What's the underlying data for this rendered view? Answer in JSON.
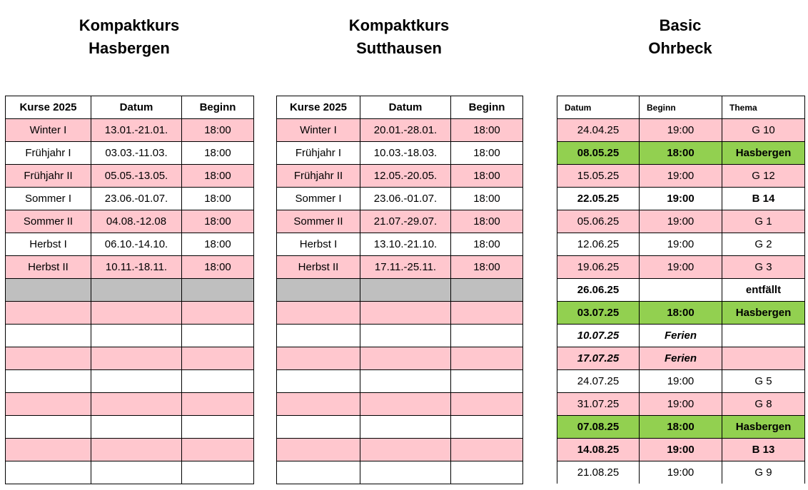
{
  "headings": [
    {
      "line1": "Kompaktkurs",
      "line2": "Hasbergen"
    },
    {
      "line1": "Kompaktkurs",
      "line2": "Sutthausen"
    },
    {
      "line1": "Basic",
      "line2": "Ohrbeck"
    }
  ],
  "table1": {
    "headers": [
      "Kurse 2025",
      "Datum",
      "Beginn"
    ],
    "rows": [
      {
        "kurs": "Winter I",
        "datum": "13.01.-21.01.",
        "beginn": "18:00"
      },
      {
        "kurs": "Frühjahr I",
        "datum": "03.03.-11.03.",
        "beginn": "18:00"
      },
      {
        "kurs": "Frühjahr II",
        "datum": "05.05.-13.05.",
        "beginn": "18:00"
      },
      {
        "kurs": "Sommer I",
        "datum": "23.06.-01.07.",
        "beginn": "18:00"
      },
      {
        "kurs": "Sommer II",
        "datum": "04.08.-12.08",
        "beginn": "18:00"
      },
      {
        "kurs": "Herbst I",
        "datum": "06.10.-14.10.",
        "beginn": "18:00"
      },
      {
        "kurs": "Herbst II",
        "datum": "10.11.-18.11.",
        "beginn": "18:00"
      }
    ]
  },
  "table2": {
    "headers": [
      "Kurse 2025",
      "Datum",
      "Beginn"
    ],
    "rows": [
      {
        "kurs": "Winter I",
        "datum": "20.01.-28.01.",
        "beginn": "18:00"
      },
      {
        "kurs": "Frühjahr I",
        "datum": "10.03.-18.03.",
        "beginn": "18:00"
      },
      {
        "kurs": "Frühjahr II",
        "datum": "12.05.-20.05.",
        "beginn": "18:00"
      },
      {
        "kurs": "Sommer I",
        "datum": "23.06.-01.07.",
        "beginn": "18:00"
      },
      {
        "kurs": "Sommer II",
        "datum": "21.07.-29.07.",
        "beginn": "18:00"
      },
      {
        "kurs": "Herbst I",
        "datum": "13.10.-21.10.",
        "beginn": "18:00"
      },
      {
        "kurs": "Herbst II",
        "datum": "17.11.-25.11.",
        "beginn": "18:00"
      }
    ]
  },
  "table3": {
    "headers": [
      "Datum",
      "Beginn",
      "Thema"
    ],
    "rows": [
      {
        "datum": "24.04.25",
        "beginn": "19:00",
        "thema": "G  10"
      },
      {
        "datum": "08.05.25",
        "beginn": "18:00",
        "thema": "Hasbergen"
      },
      {
        "datum": "15.05.25",
        "beginn": "19:00",
        "thema": "G  12"
      },
      {
        "datum": "22.05.25",
        "beginn": "19:00",
        "thema": "B 14"
      },
      {
        "datum": "05.06.25",
        "beginn": "19:00",
        "thema": "G  1"
      },
      {
        "datum": "12.06.25",
        "beginn": "19:00",
        "thema": "G  2"
      },
      {
        "datum": "19.06.25",
        "beginn": "19:00",
        "thema": "G  3"
      },
      {
        "datum": "26.06.25",
        "beginn": "",
        "thema": "entfällt"
      },
      {
        "datum": "03.07.25",
        "beginn": "18:00",
        "thema": "Hasbergen"
      },
      {
        "datum": "10.07.25",
        "beginn": "Ferien",
        "thema": ""
      },
      {
        "datum": "17.07.25",
        "beginn": "Ferien",
        "thema": ""
      },
      {
        "datum": "24.07.25",
        "beginn": "19:00",
        "thema": "G  5"
      },
      {
        "datum": "31.07.25",
        "beginn": "19:00",
        "thema": "G  8"
      },
      {
        "datum": "07.08.25",
        "beginn": "18:00",
        "thema": "Hasbergen"
      },
      {
        "datum": "14.08.25",
        "beginn": "19:00",
        "thema": "B 13"
      },
      {
        "datum": "21.08.25",
        "beginn": "19:00",
        "thema": "G  9"
      }
    ]
  },
  "colors": {
    "pink": "#ffc7ce",
    "green": "#92d050",
    "gray": "#bfbfbf"
  }
}
